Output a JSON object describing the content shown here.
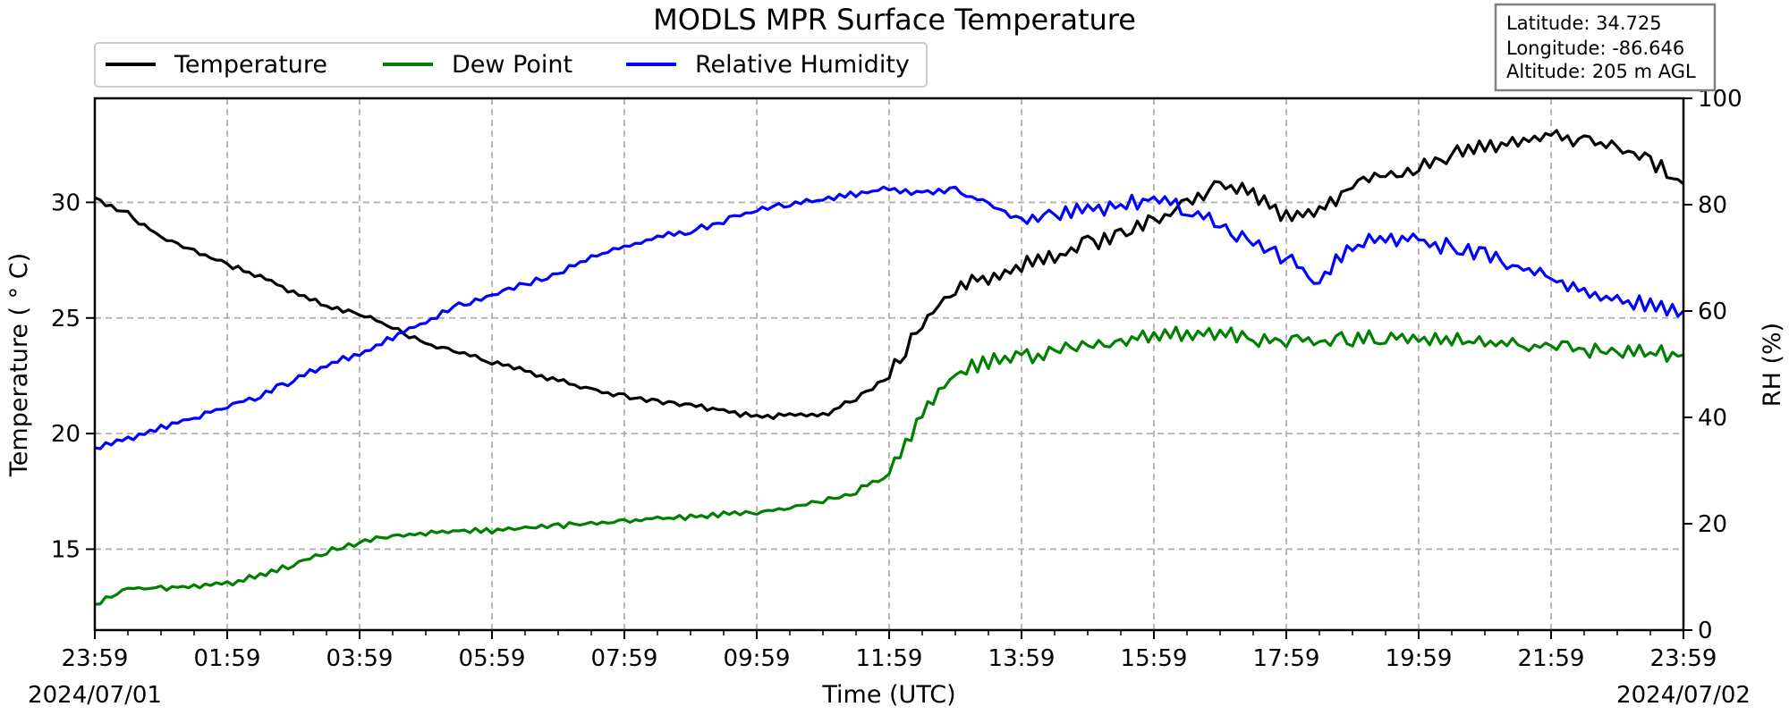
{
  "chart_data": {
    "type": "line",
    "title": "MODLS MPR Surface Temperature",
    "xlabel": "Time (UTC)",
    "ylabel": "Temperature ($^\\circ$C)",
    "ylabel_display": "Temperature ( ° C)",
    "y2label": "RH (%)",
    "xlim": [
      "2024-07-01 23:59",
      "2024-07-02 23:59"
    ],
    "ylim": [
      11.5,
      34.5
    ],
    "y2lim": [
      0,
      100
    ],
    "x_ticks": [
      "23:59",
      "01:59",
      "03:59",
      "05:59",
      "07:59",
      "09:59",
      "11:59",
      "13:59",
      "15:59",
      "17:59",
      "19:59",
      "21:59",
      "23:59"
    ],
    "x_tick_dates": {
      "start": "2024/07/01",
      "end": "2024/07/02"
    },
    "y_ticks": [
      15,
      20,
      25,
      30
    ],
    "y2_ticks": [
      0,
      20,
      40,
      60,
      80,
      100
    ],
    "grid": true,
    "legend_placement": "top-left, above plot",
    "info_box": [
      "Latitude: 34.725",
      "Longitude: -86.646",
      "Altitude: 205 m AGL"
    ],
    "x_hours": [
      0,
      0.5,
      1,
      1.5,
      2,
      2.5,
      3,
      3.5,
      4,
      4.5,
      5,
      5.5,
      6,
      6.5,
      7,
      7.5,
      8,
      8.5,
      9,
      9.5,
      10,
      10.5,
      11,
      11.5,
      12,
      12.5,
      13,
      13.5,
      14,
      14.5,
      15,
      15.5,
      16,
      16.5,
      17,
      17.5,
      18,
      18.5,
      19,
      19.5,
      20,
      20.5,
      21,
      21.5,
      22,
      22.5,
      23,
      23.5,
      24
    ],
    "series": [
      {
        "name": "Temperature",
        "color": "#000000",
        "axis": "left",
        "values": [
          30.2,
          29.5,
          28.5,
          27.9,
          27.3,
          26.8,
          26.1,
          25.5,
          25.2,
          24.6,
          23.9,
          23.5,
          23.1,
          22.7,
          22.3,
          21.9,
          21.6,
          21.4,
          21.2,
          21.0,
          20.7,
          20.8,
          20.8,
          21.5,
          22.5,
          24.8,
          26.2,
          26.8,
          27.3,
          27.6,
          28.2,
          28.6,
          29.2,
          30.0,
          30.8,
          30.4,
          29.3,
          29.5,
          30.8,
          31.2,
          31.5,
          32.1,
          32.4,
          32.7,
          33.0,
          32.6,
          32.3,
          31.8,
          30.8
        ]
      },
      {
        "name": "Dew Point",
        "color": "#008000",
        "axis": "left",
        "values": [
          12.6,
          13.3,
          13.3,
          13.4,
          13.5,
          13.9,
          14.3,
          14.9,
          15.3,
          15.6,
          15.7,
          15.8,
          15.8,
          15.9,
          16.0,
          16.1,
          16.2,
          16.3,
          16.4,
          16.5,
          16.6,
          16.8,
          17.1,
          17.5,
          18.3,
          20.8,
          22.6,
          23.1,
          23.3,
          23.5,
          23.8,
          24.0,
          24.2,
          24.3,
          24.3,
          24.1,
          24.0,
          24.0,
          24.1,
          24.1,
          24.2,
          24.0,
          23.9,
          23.8,
          23.7,
          23.6,
          23.5,
          23.5,
          23.4
        ]
      },
      {
        "name": "Relative Humidity",
        "color": "#0000ff",
        "axis": "right",
        "values": [
          34,
          36,
          38,
          40,
          42,
          44,
          47,
          50,
          52,
          55,
          58,
          61,
          63,
          65,
          67,
          70,
          72,
          74,
          75,
          77,
          79,
          80,
          81,
          82,
          83,
          82,
          83,
          80,
          77,
          78,
          79,
          80,
          81,
          79,
          76,
          73,
          70,
          66,
          72,
          74,
          73,
          72,
          71,
          68,
          66,
          64,
          62,
          61,
          60
        ]
      }
    ]
  }
}
